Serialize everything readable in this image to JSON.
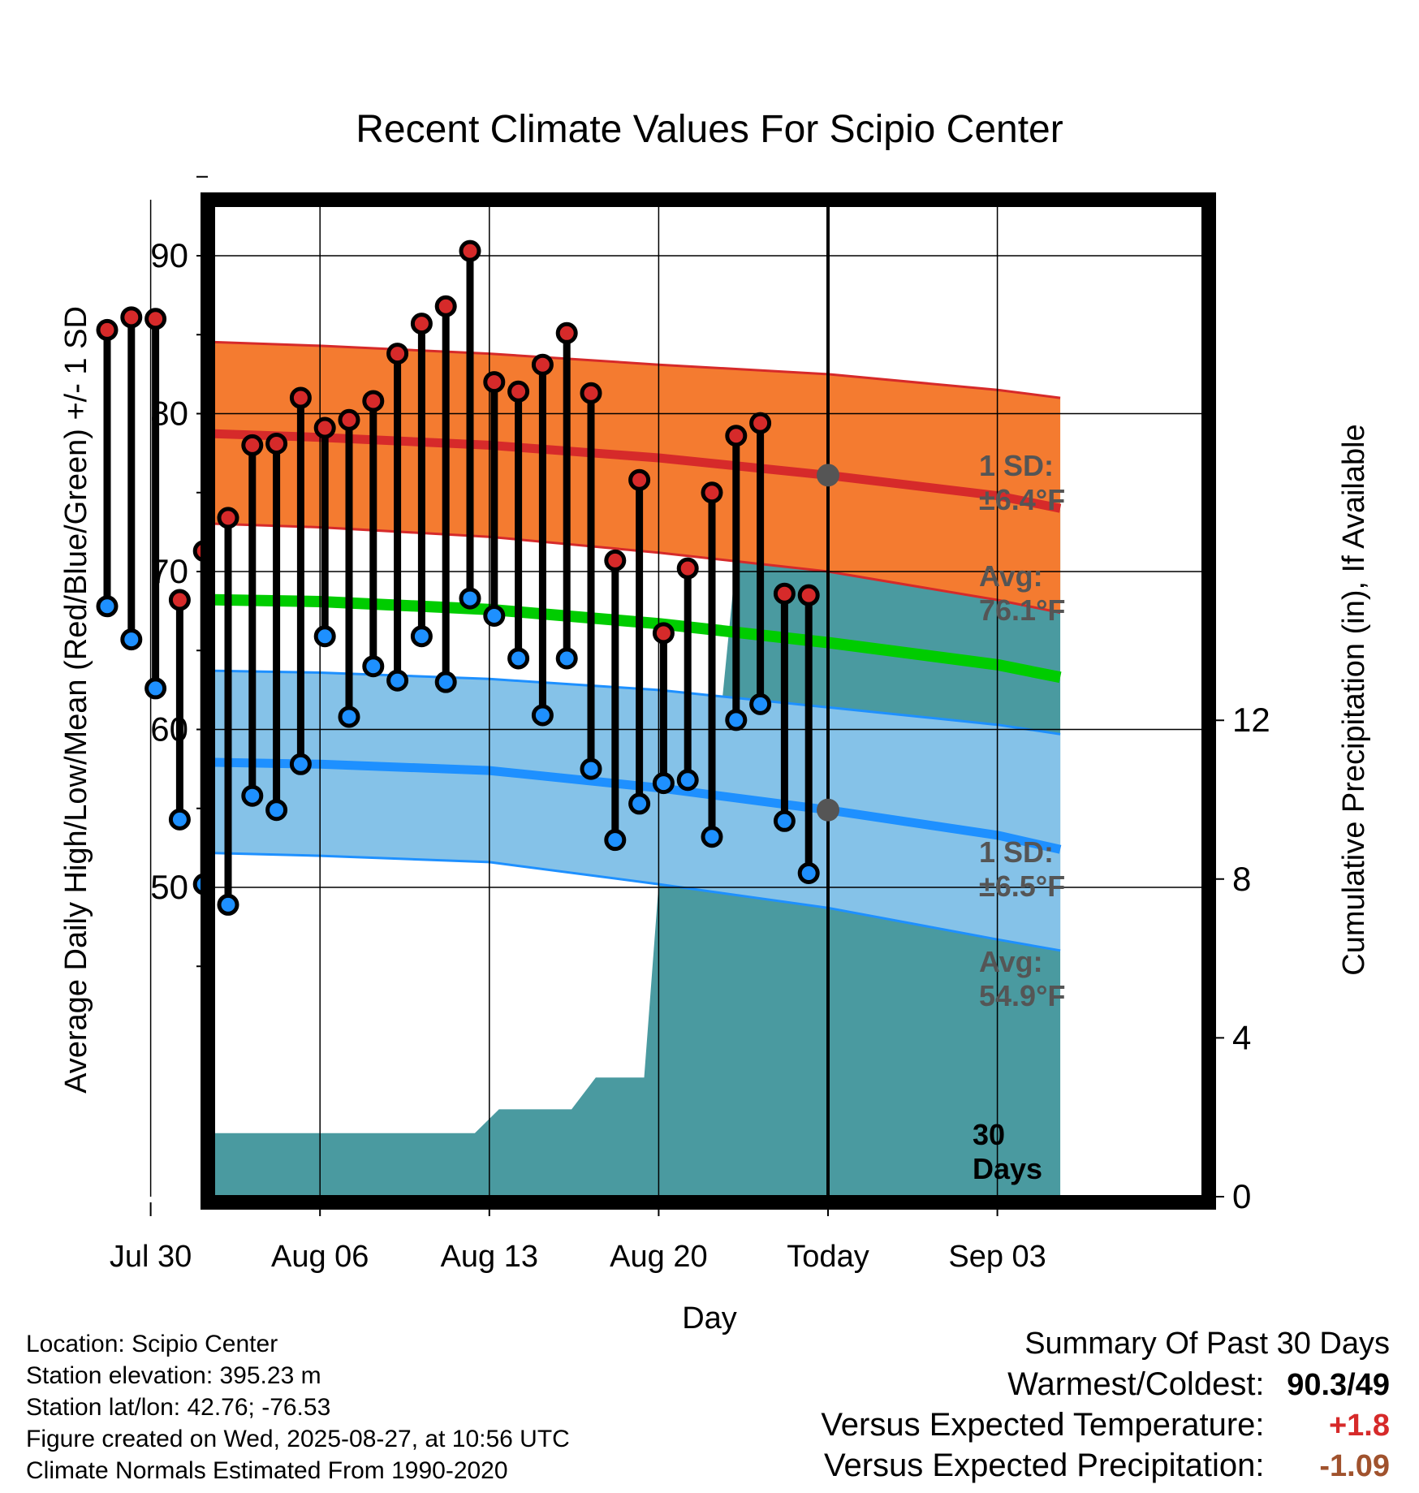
{
  "chart_data": {
    "type": "line",
    "title": "Recent Climate Values For Scipio Center",
    "xlabel": "Day",
    "ylabel": "Average Daily High/Low/Mean (Red/Blue/Green) +/- 1 SD",
    "y2label": "Cumulative Precipitation (in), If Available",
    "x_tick_labels": [
      "Jul 30",
      "Aug 06",
      "Aug 13",
      "Aug 20",
      "Today",
      "Sep 03"
    ],
    "y_ticks": [
      "50",
      "60",
      "70",
      "80",
      "90"
    ],
    "y2_ticks": [
      "0",
      "4",
      "8",
      "12"
    ],
    "ylim": [
      40.7,
      95.5
    ],
    "y2lim": [
      0,
      24.5
    ],
    "colors": {
      "high_band": "#f47b30",
      "high_line": "#d62a2a",
      "low_band": "#85c2e8",
      "low_line": "#1e90ff",
      "mean_line": "#00cc00",
      "precip": "#4a9aa0",
      "high_marker": "#d62a2a",
      "low_marker": "#1e90ff"
    },
    "normals": {
      "x_days": [
        -28.6,
        -21,
        -14,
        -7,
        0,
        7,
        9.6
      ],
      "high_avg": [
        78.9,
        78.5,
        78.0,
        77.2,
        76.1,
        74.8,
        74.0
      ],
      "high_plus": [
        84.7,
        84.3,
        83.8,
        83.1,
        82.5,
        81.5,
        81.0
      ],
      "high_minus": [
        73.2,
        72.8,
        72.2,
        71.2,
        70.0,
        68.2,
        67.4
      ],
      "mean": [
        68.3,
        68.1,
        67.6,
        66.7,
        65.5,
        64.1,
        63.3
      ],
      "low_avg": [
        58.0,
        57.8,
        57.4,
        56.3,
        54.9,
        53.3,
        52.4
      ],
      "low_plus": [
        63.8,
        63.6,
        63.2,
        62.5,
        61.4,
        60.3,
        59.7
      ],
      "low_minus": [
        52.3,
        52.0,
        51.6,
        50.2,
        48.7,
        46.7,
        46.0
      ]
    },
    "daily": {
      "x_days": [
        -30,
        -29,
        -28,
        -27,
        -26,
        -25,
        -24,
        -23,
        -22,
        -21,
        -20,
        -19,
        -18,
        -17,
        -16,
        -15,
        -14,
        -13,
        -12,
        -11,
        -10,
        -9,
        -8,
        -7,
        -6,
        -5,
        -4,
        -3,
        -2,
        -1
      ],
      "highs": [
        85.3,
        86.1,
        86.0,
        68.2,
        71.3,
        73.4,
        78.0,
        78.1,
        81.0,
        79.1,
        79.6,
        80.8,
        83.8,
        85.7,
        86.8,
        90.3,
        82.0,
        81.4,
        83.1,
        85.1,
        81.3,
        70.7,
        75.8,
        66.1,
        70.2,
        75.0,
        78.6,
        79.4,
        68.6,
        68.5
      ],
      "lows": [
        67.8,
        65.7,
        62.6,
        54.3,
        50.2,
        48.9,
        55.8,
        54.9,
        57.8,
        65.9,
        60.8,
        64.0,
        63.1,
        65.9,
        63.0,
        68.3,
        67.2,
        64.5,
        60.9,
        64.5,
        57.5,
        53.0,
        55.3,
        56.6,
        56.8,
        53.2,
        60.6,
        61.6,
        54.2,
        50.9
      ]
    },
    "precip": {
      "x_days": [
        -30.6,
        -27.6,
        -26.6,
        -14.6,
        -13.6,
        -10.6,
        -9.6,
        -7.6,
        -6.6,
        -4.6,
        -3.6,
        9.6
      ],
      "cumulative_in": [
        0,
        0,
        1.6,
        1.6,
        2.2,
        2.2,
        3.0,
        3.0,
        11.1,
        11.1,
        17.3,
        17.3
      ]
    },
    "annotations": {
      "high_sd": "1 SD:",
      "high_sd_val": "±6.4°F",
      "high_avg": "Avg:",
      "high_avg_val": "76.1°F",
      "low_sd": "1 SD:",
      "low_sd_val": "±6.5°F",
      "low_avg": "Avg:",
      "low_avg_val": "54.9°F",
      "days_line1": "30",
      "days_line2": "Days"
    }
  },
  "footer": {
    "location": "Location: Scipio Center",
    "elevation": "Station elevation: 395.23 m",
    "latlon": "Station lat/lon: 42.76; -76.53",
    "created": "Figure created on Wed, 2025-08-27, at 10:56 UTC",
    "normals": "Climate Normals Estimated From 1990-2020"
  },
  "summary": {
    "title": "Summary Of Past 30 Days",
    "warmest_label": "Warmest/Coldest:",
    "warmest_hi": "90.3",
    "warmest_sep": "/",
    "warmest_lo": "49",
    "temp_label": "Versus Expected Temperature:",
    "temp_value": "+1.8",
    "temp_color": "#d62a2a",
    "precip_label": "Versus Expected Precipitation:",
    "precip_value": "-1.09",
    "precip_color": "#a0522d"
  }
}
